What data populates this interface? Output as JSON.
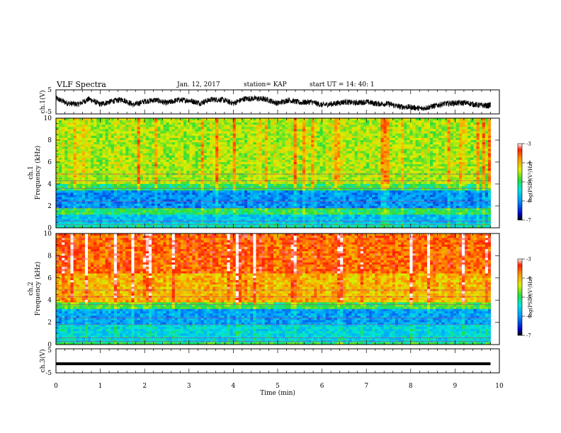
{
  "header": {
    "title": "VLF Spectra",
    "date": "Jan. 12, 2017",
    "station": "station= KAP",
    "start": "start  UT =   14: 40: 1"
  },
  "chart_data": [
    {
      "type": "line",
      "panel": "ch1-waveform",
      "ylabel": "ch.1(V)",
      "ylim": [
        -5,
        5
      ],
      "yticks": [
        "5",
        "-5"
      ],
      "x": [
        0,
        0.25,
        0.5,
        0.75,
        1,
        1.25,
        1.5,
        1.75,
        2,
        2.25,
        2.5,
        2.75,
        3,
        3.25,
        3.5,
        3.75,
        4,
        4.25,
        4.5,
        4.75,
        5,
        5.25,
        5.5,
        5.75,
        6,
        6.25,
        6.5,
        6.75,
        7,
        7.25,
        7.5,
        7.75,
        8,
        8.25,
        8.5,
        8.75,
        9,
        9.25,
        9.5,
        9.75,
        9.8
      ],
      "values": [
        1.5,
        -0.5,
        -1.0,
        1.2,
        -1.0,
        0.2,
        1.0,
        -1.2,
        0.2,
        0.8,
        -0.5,
        0.8,
        0.6,
        -0.5,
        1.0,
        0.9,
        -0.6,
        1.3,
        1.4,
        1.0,
        -0.6,
        0.8,
        -0.3,
        0.0,
        -1.3,
        -0.8,
        0.0,
        -0.4,
        0.0,
        -0.8,
        -0.8,
        -2.0,
        -2.2,
        -2.8,
        -1.8,
        -0.8,
        -0.5,
        -0.4,
        -1.3,
        -1.6,
        -1.2
      ]
    },
    {
      "type": "heatmap",
      "panel": "ch1-spectrogram",
      "ylabel": "ch.1\nFrequency (kHz)",
      "ylim": [
        0,
        10
      ],
      "yticks": [
        "0",
        "2",
        "4",
        "6",
        "8",
        "10"
      ],
      "colorbar": {
        "label": "log(PSD)(V²/Hz)",
        "range": [
          -7,
          -3
        ],
        "ticks": [
          "-3",
          "-4",
          "-5",
          "-6",
          "-7"
        ]
      },
      "bands_khz": [
        [
          0,
          0.4,
          -5.3
        ],
        [
          0.4,
          1.3,
          -5.7
        ],
        [
          1.3,
          1.8,
          -5.0
        ],
        [
          1.8,
          3.5,
          -6.0
        ],
        [
          3.5,
          4.1,
          -5.0
        ],
        [
          4.1,
          10,
          -4.5
        ]
      ]
    },
    {
      "type": "heatmap",
      "panel": "ch2-spectrogram",
      "ylabel": "ch.2\nFrequency (kHz)",
      "ylim": [
        0,
        10
      ],
      "yticks": [
        "0",
        "2",
        "4",
        "6",
        "8",
        "10"
      ],
      "colorbar": {
        "label": "log(PSD)(V²/Hz)",
        "range": [
          -7,
          -3
        ],
        "ticks": [
          "-3",
          "-4",
          "-5",
          "-6",
          "-7"
        ]
      },
      "bands_khz": [
        [
          0,
          0.3,
          -5.0
        ],
        [
          0.3,
          1.8,
          -5.5
        ],
        [
          1.8,
          3.2,
          -5.9
        ],
        [
          3.2,
          3.8,
          -4.9
        ],
        [
          3.8,
          6.5,
          -4.0
        ],
        [
          6.5,
          10,
          -3.6
        ]
      ]
    },
    {
      "type": "line",
      "panel": "ch3-waveform",
      "ylabel": "ch.3(V)",
      "ylim": [
        -5,
        5
      ],
      "yticks": [
        "5",
        "-5"
      ],
      "x": [
        0,
        9.8
      ],
      "values": [
        -1.2,
        -1.2
      ]
    }
  ],
  "xaxis": {
    "label": "Time (min)",
    "xlim": [
      0,
      10
    ],
    "ticks": [
      "0",
      "1",
      "2",
      "3",
      "4",
      "5",
      "6",
      "7",
      "8",
      "9",
      "10"
    ]
  }
}
